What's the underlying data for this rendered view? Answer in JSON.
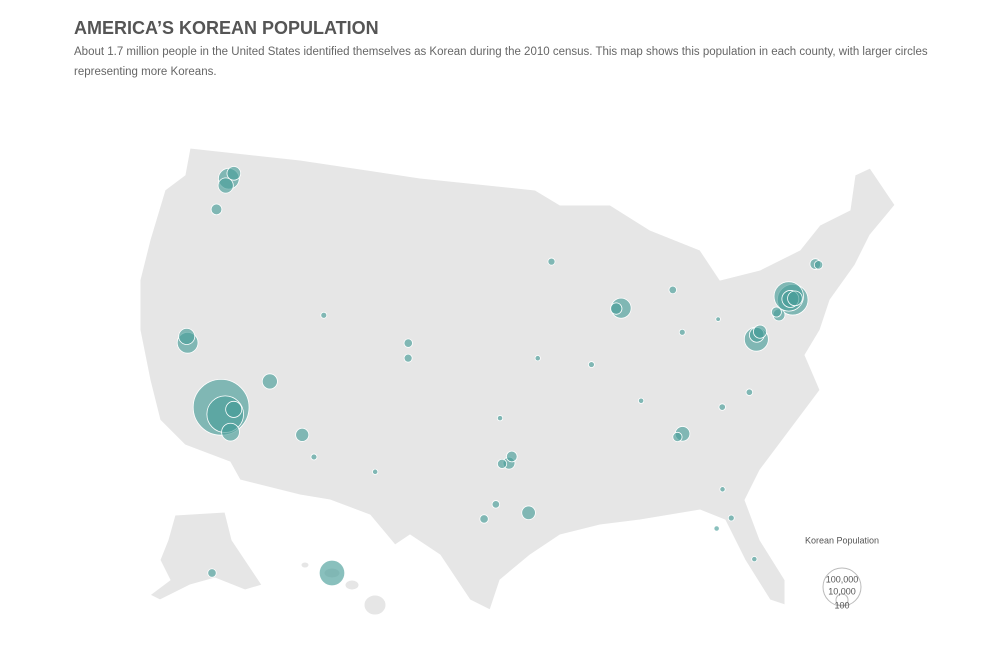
{
  "chart_data": {
    "type": "bubble-map",
    "title": "AMERICA’S KOREAN POPULATION",
    "subtitle": "About 1.7 million people in the United States identified themselves as Korean during the 2010 census. This map shows this population in each county, with larger circles representing more Koreans.",
    "color": "#4a9e9a",
    "legend_title": "Korean Population",
    "legend_sizes": [
      {
        "value": 100000,
        "label": "100,000"
      },
      {
        "value": 10000,
        "label": "10,000"
      },
      {
        "value": 100,
        "label": "100"
      }
    ],
    "lon": [
      -118.24,
      -117.83,
      -117.16,
      -117.3,
      -121.9,
      -122.1,
      -115.1,
      -112.0,
      -110.9,
      -122.3,
      -122.0,
      -122.4,
      -122.6,
      -157.9,
      -149.9,
      -104.9,
      -104.8,
      -111.9,
      -96.8,
      -97.3,
      -96.6,
      -95.4,
      -98.5,
      -97.7,
      -106.4,
      -97.5,
      -87.7,
      -88.1,
      -93.3,
      -83.3,
      -83.0,
      -84.0,
      -84.4,
      -74.05,
      -73.8,
      -73.6,
      -73.97,
      -77.3,
      -77.2,
      -76.9,
      -75.15,
      -75.3,
      -71.3,
      -71.06,
      -78.6,
      -80.8,
      -82.5,
      -81.4,
      -80.3,
      -81.7,
      -86.8,
      -90.4,
      -94.6,
      -80.0
    ],
    "lat": [
      34.05,
      33.7,
      32.72,
      34.1,
      37.3,
      37.65,
      36.2,
      33.4,
      32.2,
      47.5,
      47.9,
      47.05,
      45.5,
      21.3,
      61.2,
      39.7,
      38.8,
      40.7,
      32.8,
      32.75,
      33.2,
      29.8,
      29.4,
      30.3,
      31.8,
      35.5,
      41.85,
      41.85,
      44.9,
      42.6,
      40.0,
      33.95,
      33.8,
      40.95,
      40.7,
      40.75,
      40.78,
      38.85,
      39.1,
      39.25,
      40.0,
      40.2,
      42.45,
      42.35,
      35.8,
      35.2,
      28.0,
      28.5,
      25.8,
      30.3,
      36.2,
      38.6,
      39.1,
      40.45
    ],
    "values": [
      216000,
      93000,
      22000,
      18000,
      30000,
      18000,
      16000,
      12000,
      2500,
      30000,
      13000,
      16000,
      8000,
      45000,
      5000,
      5000,
      4500,
      2500,
      10000,
      6000,
      8000,
      13000,
      5000,
      4000,
      2000,
      2000,
      28000,
      9000,
      3500,
      4000,
      2500,
      15000,
      6000,
      60000,
      65000,
      15000,
      20000,
      40000,
      15000,
      12000,
      10000,
      7000,
      8000,
      5000,
      3000,
      3000,
      2000,
      2500,
      2000,
      2000,
      2000,
      2500,
      2000,
      1500
    ]
  }
}
